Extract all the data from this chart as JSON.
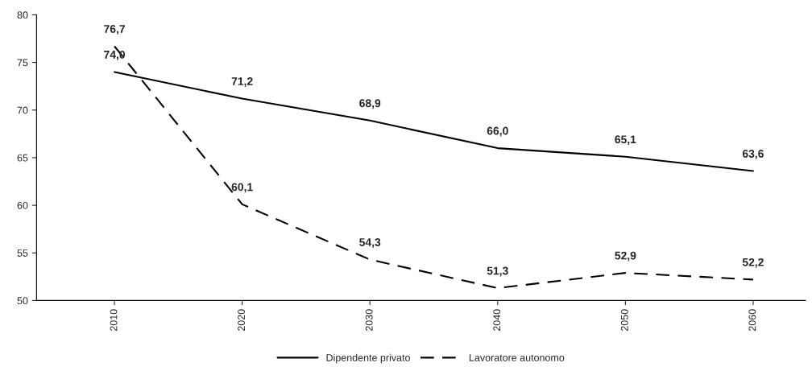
{
  "chart_data": {
    "type": "line",
    "categories": [
      "2010",
      "2020",
      "2030",
      "2040",
      "2050",
      "2060"
    ],
    "series": [
      {
        "name": "Dipendente privato",
        "color": "#000000",
        "line_style": "solid",
        "values": [
          74.0,
          71.2,
          68.9,
          66.0,
          65.1,
          63.6
        ],
        "value_labels": [
          "74,0",
          "71,2",
          "68,9",
          "66,0",
          "65,1",
          "63,6"
        ]
      },
      {
        "name": "Lavoratore autonomo",
        "color": "#000000",
        "line_style": "dashed",
        "values": [
          76.7,
          60.1,
          54.3,
          51.3,
          52.9,
          52.2
        ],
        "value_labels": [
          "76,7",
          "60,1",
          "54,3",
          "51,3",
          "52,9",
          "52,2"
        ]
      }
    ],
    "ylim": [
      50,
      80
    ],
    "yticks": [
      50,
      55,
      60,
      65,
      70,
      75,
      80
    ],
    "grid": false,
    "legend": "bottom",
    "marker": "none"
  }
}
